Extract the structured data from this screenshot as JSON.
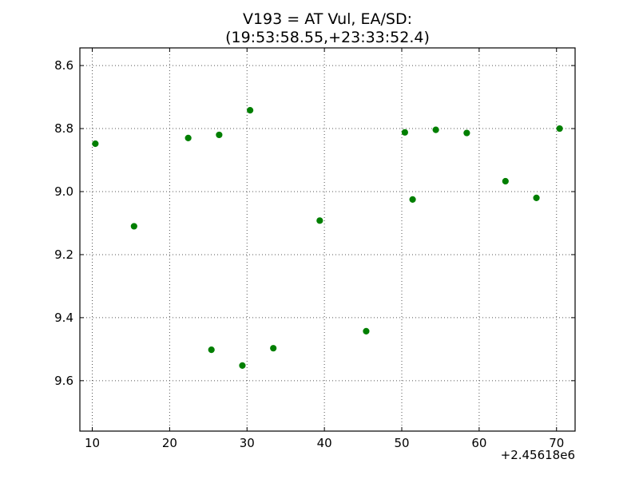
{
  "chart_data": {
    "type": "scatter",
    "title": [
      "V193 = AT Vul, EA/SD:",
      "(19:53:58.55,+23:33:52.4)"
    ],
    "xlabel": "",
    "ylabel": "",
    "x_offset_label": "+2.45618e6",
    "xlim": [
      8.4,
      72.4
    ],
    "ylim": [
      9.76,
      8.544
    ],
    "y_inverted": true,
    "x_ticks": [
      10,
      20,
      30,
      40,
      50,
      60,
      70
    ],
    "x_tick_labels": [
      "10",
      "20",
      "30",
      "40",
      "50",
      "60",
      "70"
    ],
    "y_ticks": [
      8.6,
      8.8,
      9.0,
      9.2,
      9.4,
      9.6
    ],
    "y_tick_labels": [
      "8.6",
      "8.8",
      "9.0",
      "9.2",
      "9.4",
      "9.6"
    ],
    "grid": true,
    "marker_color": "#007f00",
    "series": [
      {
        "points": [
          {
            "x": 10.4,
            "y": 8.848
          },
          {
            "x": 15.4,
            "y": 9.11
          },
          {
            "x": 22.4,
            "y": 8.83
          },
          {
            "x": 25.4,
            "y": 9.502
          },
          {
            "x": 26.4,
            "y": 8.82
          },
          {
            "x": 29.4,
            "y": 9.552
          },
          {
            "x": 30.4,
            "y": 8.742
          },
          {
            "x": 33.4,
            "y": 9.497
          },
          {
            "x": 39.4,
            "y": 9.092
          },
          {
            "x": 45.4,
            "y": 9.443
          },
          {
            "x": 50.4,
            "y": 8.812
          },
          {
            "x": 51.4,
            "y": 9.025
          },
          {
            "x": 54.4,
            "y": 8.804
          },
          {
            "x": 58.4,
            "y": 8.814
          },
          {
            "x": 63.4,
            "y": 8.967
          },
          {
            "x": 67.4,
            "y": 9.02
          },
          {
            "x": 70.4,
            "y": 8.8
          }
        ]
      }
    ]
  }
}
